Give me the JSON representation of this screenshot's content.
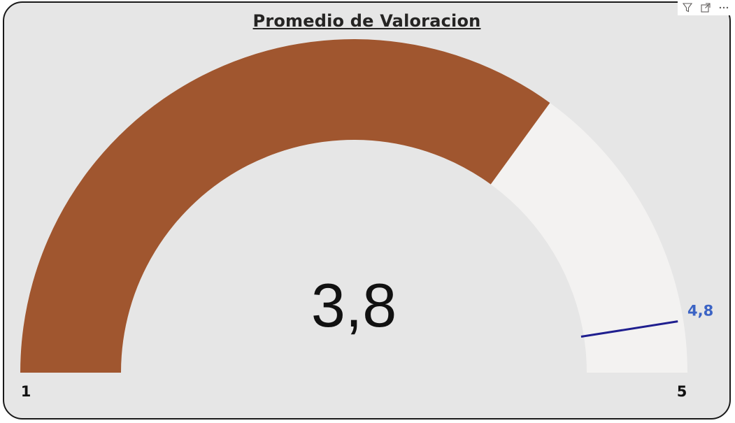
{
  "visual": {
    "title": "Promedio de Valoracion"
  },
  "toolbar": {
    "icons": [
      "filter-icon",
      "focus-mode-icon",
      "more-options-icon"
    ]
  },
  "chart_data": {
    "type": "gauge",
    "title": "Promedio de Valoracion",
    "min": 1,
    "max": 5,
    "value": 3.8,
    "target": 4.8,
    "value_label": "3,8",
    "target_label": "4,8",
    "min_label": "1",
    "max_label": "5",
    "colors": {
      "fill": "#a0562f",
      "track": "#f3f2f1",
      "target": "#1f1f8f",
      "target_label": "#3b63c4",
      "card_background": "#e6e6e6"
    }
  }
}
